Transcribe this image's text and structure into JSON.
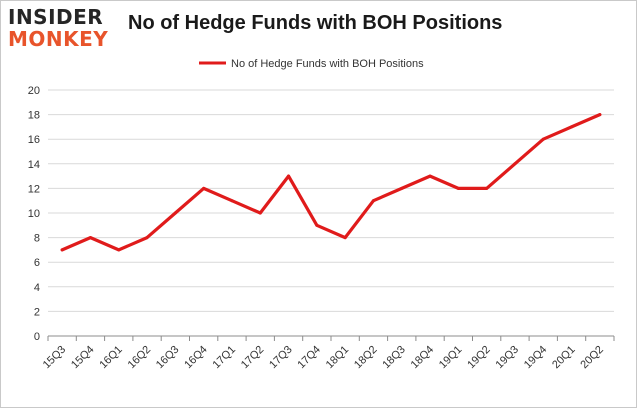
{
  "logo": {
    "line1": "INSIDER",
    "line2": "MONKEY"
  },
  "colors": {
    "series": "#e01b1b",
    "grid": "#d9d9d9",
    "axis": "#8c8c8c",
    "logo_dark": "#262626",
    "logo_accent": "#e8542b"
  },
  "chart_data": {
    "type": "line",
    "title": "No of Hedge Funds with BOH Positions",
    "xlabel": "",
    "ylabel": "",
    "x": [
      "15Q3",
      "15Q4",
      "16Q1",
      "16Q2",
      "16Q3",
      "16Q4",
      "17Q1",
      "17Q2",
      "17Q3",
      "17Q4",
      "18Q1",
      "18Q2",
      "18Q3",
      "18Q4",
      "19Q1",
      "19Q2",
      "19Q3",
      "19Q4",
      "20Q1",
      "20Q2"
    ],
    "series": [
      {
        "name": "No of Hedge Funds with BOH Positions",
        "values": [
          7,
          8,
          7,
          8,
          10,
          12,
          11,
          10,
          13,
          9,
          8,
          11,
          12,
          13,
          12,
          12,
          14,
          16,
          17,
          18
        ]
      }
    ],
    "ylim": [
      0,
      20
    ],
    "yticks": [
      0,
      2,
      4,
      6,
      8,
      10,
      12,
      14,
      16,
      18,
      20
    ],
    "grid": true,
    "legend": "top-center"
  }
}
